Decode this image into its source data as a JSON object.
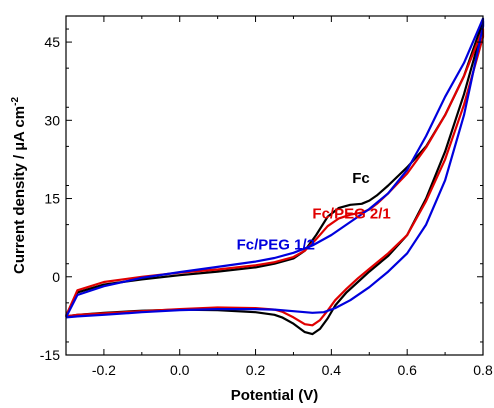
{
  "chart_data": {
    "type": "line",
    "title": "",
    "xlabel": "Potential (V)",
    "ylabel": "Current density / µA cm",
    "ylabel_superscript": "-2",
    "xlim": [
      -0.3,
      0.8
    ],
    "ylim": [
      -15,
      50
    ],
    "xticks": [
      -0.2,
      0.0,
      0.2,
      0.4,
      0.6,
      0.8
    ],
    "xtick_labels": [
      "-0.2",
      "0.0",
      "0.2",
      "0.4",
      "0.6",
      "0.8"
    ],
    "yticks": [
      -15,
      0,
      15,
      30,
      45
    ],
    "ytick_labels": [
      "-15",
      "0",
      "15",
      "30",
      "45"
    ],
    "grid": false,
    "legend": "inline labels",
    "series": [
      {
        "name": "Fc",
        "color": "#000000",
        "x": [
          -0.3,
          -0.27,
          -0.2,
          -0.1,
          0.0,
          0.1,
          0.2,
          0.25,
          0.3,
          0.33,
          0.36,
          0.39,
          0.42,
          0.45,
          0.48,
          0.5,
          0.52,
          0.55,
          0.6,
          0.65,
          0.7,
          0.75,
          0.8,
          0.8,
          0.75,
          0.7,
          0.65,
          0.6,
          0.55,
          0.5,
          0.47,
          0.44,
          0.41,
          0.39,
          0.37,
          0.35,
          0.33,
          0.3,
          0.27,
          0.25,
          0.2,
          0.1,
          0.0,
          -0.1,
          -0.2,
          -0.27,
          -0.3
        ],
        "y": [
          -7.5,
          -3.0,
          -1.5,
          -0.5,
          0.3,
          1.0,
          1.8,
          2.5,
          3.5,
          5.0,
          8.0,
          11.5,
          13.2,
          13.8,
          14.0,
          14.6,
          15.6,
          17.5,
          21.0,
          25.0,
          31.0,
          38.5,
          49.0,
          48.0,
          35.0,
          24.0,
          15.0,
          8.0,
          4.0,
          1.0,
          -1.0,
          -3.0,
          -5.5,
          -8.0,
          -10.0,
          -11.0,
          -10.6,
          -9.0,
          -7.8,
          -7.3,
          -6.8,
          -6.4,
          -6.3,
          -6.5,
          -6.9,
          -7.3,
          -7.6
        ]
      },
      {
        "name": "Fc/PEG 2/1",
        "color": "#e00000",
        "x": [
          -0.3,
          -0.27,
          -0.2,
          -0.1,
          0.0,
          0.1,
          0.2,
          0.25,
          0.3,
          0.33,
          0.36,
          0.39,
          0.42,
          0.45,
          0.48,
          0.5,
          0.52,
          0.55,
          0.6,
          0.65,
          0.7,
          0.75,
          0.8,
          0.8,
          0.75,
          0.7,
          0.65,
          0.6,
          0.55,
          0.5,
          0.47,
          0.44,
          0.41,
          0.39,
          0.37,
          0.35,
          0.33,
          0.3,
          0.27,
          0.25,
          0.2,
          0.1,
          0.0,
          -0.1,
          -0.2,
          -0.27,
          -0.3
        ],
        "y": [
          -7.5,
          -2.6,
          -1.0,
          0.0,
          0.8,
          1.4,
          2.2,
          2.8,
          3.8,
          5.0,
          7.2,
          9.7,
          11.2,
          11.9,
          12.3,
          12.9,
          14.0,
          16.0,
          19.8,
          24.8,
          31.0,
          38.5,
          47.5,
          46.0,
          33.0,
          22.5,
          14.5,
          8.0,
          4.5,
          1.5,
          -0.3,
          -2.3,
          -4.5,
          -6.5,
          -8.3,
          -9.3,
          -9.1,
          -7.8,
          -6.7,
          -6.3,
          -6.0,
          -5.9,
          -6.2,
          -6.6,
          -7.0,
          -7.3,
          -7.6
        ]
      },
      {
        "name": "Fc/PEG 1/2",
        "color": "#0000dd",
        "x": [
          -0.3,
          -0.27,
          -0.2,
          -0.1,
          0.0,
          0.1,
          0.2,
          0.25,
          0.3,
          0.35,
          0.4,
          0.45,
          0.5,
          0.55,
          0.6,
          0.65,
          0.7,
          0.75,
          0.8,
          0.8,
          0.75,
          0.7,
          0.65,
          0.6,
          0.55,
          0.5,
          0.45,
          0.41,
          0.38,
          0.35,
          0.3,
          0.25,
          0.2,
          0.1,
          0.0,
          -0.1,
          -0.2,
          -0.27,
          -0.3
        ],
        "y": [
          -7.8,
          -3.5,
          -1.8,
          -0.2,
          0.9,
          1.9,
          2.9,
          3.6,
          4.6,
          6.0,
          8.0,
          10.5,
          13.0,
          16.0,
          20.5,
          27.0,
          34.5,
          41.0,
          49.5,
          48.0,
          31.0,
          18.5,
          10.0,
          4.5,
          1.0,
          -2.0,
          -4.5,
          -6.0,
          -6.8,
          -6.9,
          -6.6,
          -6.3,
          -6.2,
          -6.2,
          -6.4,
          -6.8,
          -7.3,
          -7.6,
          -7.8
        ]
      }
    ],
    "annotations": [
      {
        "text": "Fc",
        "color": "#000000",
        "x": 0.455,
        "y": 18.0
      },
      {
        "text": "Fc/PEG 2/1",
        "color": "#e00000",
        "x": 0.35,
        "y": 11.2
      },
      {
        "text": "Fc/PEG 1/2",
        "color": "#0000dd",
        "x": 0.15,
        "y": 5.2
      }
    ]
  }
}
